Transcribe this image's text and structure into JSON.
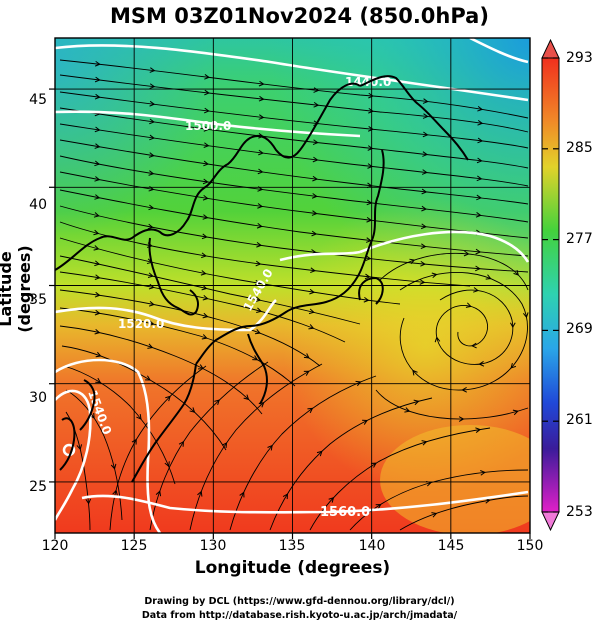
{
  "title": "MSM 03Z01Nov2024 (850.0hPa)",
  "xlabel": "Longitude (degrees)",
  "ylabel": "Latitude  (degrees)",
  "credits": {
    "line1": "Drawing by DCL (https://www.gfd-dennou.org/library/dcl/)",
    "line2": "Data from http://database.rish.kyoto-u.ac.jp/arch/jmadata/"
  },
  "map": {
    "lon_range": [
      120,
      150
    ],
    "lat_range": [
      22.4,
      47.6
    ],
    "lon_ticks": [
      "120",
      "125",
      "130",
      "135",
      "140",
      "145",
      "150"
    ],
    "lat_ticks": [
      "25",
      "30",
      "35",
      "40",
      "45"
    ],
    "contour_labels": [
      "1440.0",
      "1500.0",
      "1520.0",
      "1540.0",
      "1540.0",
      "1560.0"
    ],
    "shaded_field_colors": {
      "cold": "#1fb4e0",
      "cool": "#29d0a0",
      "mid": "#3ed23b",
      "warm_yellow": "#d8e423",
      "orange": "#f09a2a",
      "hot": "#f03a1e"
    }
  },
  "colorbar": {
    "labels": [
      "293",
      "285",
      "277",
      "269",
      "261",
      "253"
    ],
    "range": [
      253,
      293
    ],
    "top_arrow_color": "#e8504a",
    "bottom_arrow_color": "#f07ad8"
  }
}
